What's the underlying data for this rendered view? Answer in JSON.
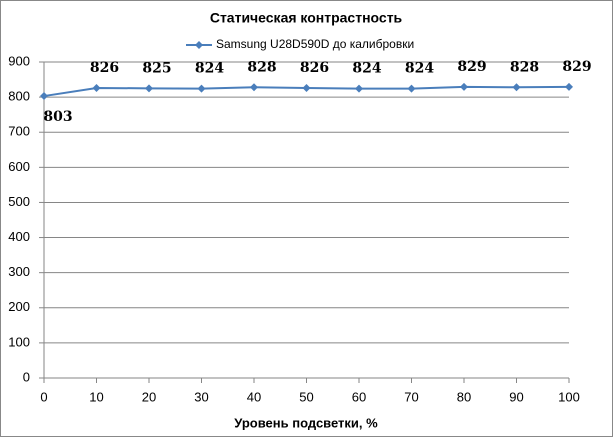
{
  "chart_data": {
    "type": "line",
    "title": "Статическая контрастность",
    "x_label": "Уровень подсветки, %",
    "x": [
      0,
      10,
      20,
      30,
      40,
      50,
      60,
      70,
      80,
      90,
      100
    ],
    "series": [
      {
        "name": "Samsung U28D590D  до калибровки",
        "color": "#4a7ebb",
        "values": [
          803,
          826,
          825,
          824,
          828,
          826,
          824,
          824,
          829,
          828,
          829
        ]
      }
    ],
    "xlim": [
      0,
      100
    ],
    "xticks": [
      0,
      10,
      20,
      30,
      40,
      50,
      60,
      70,
      80,
      90,
      100
    ],
    "ylim": [
      0,
      900
    ],
    "yticks": [
      0,
      100,
      200,
      300,
      400,
      500,
      600,
      700,
      800,
      900
    ],
    "grid": true,
    "legend": "top"
  }
}
